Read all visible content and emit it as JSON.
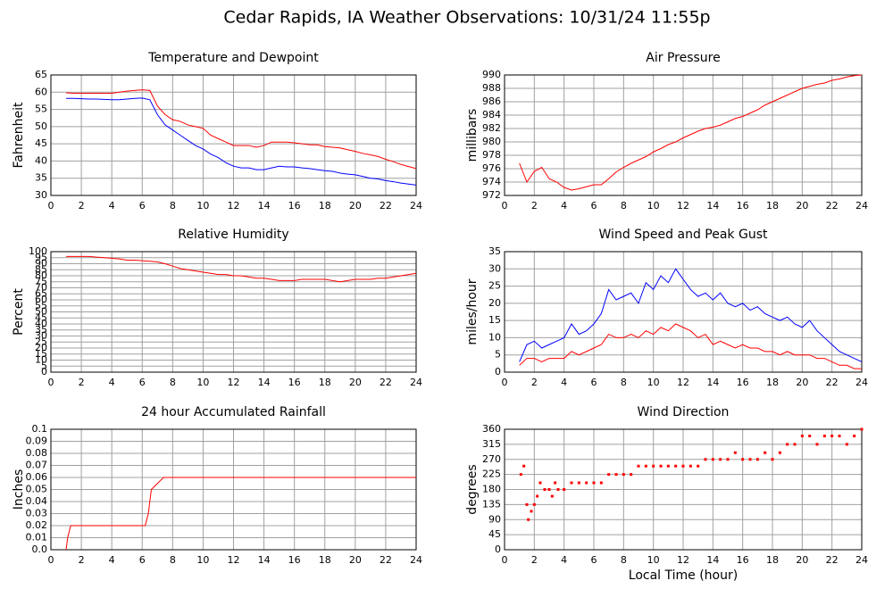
{
  "title": "Cedar Rapids, IA Weather Observations: 10/31/24 11:55p",
  "chart_data": [
    {
      "type": "line",
      "title": "Temperature and Dewpoint",
      "ylabel": "Fahrenheit",
      "x": [
        1,
        1.5,
        2,
        2.5,
        3,
        3.5,
        4,
        4.5,
        5,
        5.5,
        6,
        6.5,
        7,
        7.5,
        8,
        8.5,
        9,
        9.5,
        10,
        10.5,
        11,
        11.5,
        12,
        12.5,
        13,
        13.5,
        14,
        14.5,
        15,
        15.5,
        16,
        16.5,
        17,
        17.5,
        18,
        18.5,
        19,
        19.5,
        20,
        20.5,
        21,
        21.5,
        22,
        22.5,
        23,
        23.5,
        24
      ],
      "series": [
        {
          "name": "Temperature",
          "color": "#ff0000",
          "values": [
            59.8,
            59.7,
            59.7,
            59.7,
            59.7,
            59.7,
            59.7,
            60,
            60.3,
            60.5,
            60.7,
            60.5,
            56,
            53.5,
            52,
            51.5,
            50.5,
            50,
            49.5,
            47.5,
            46.5,
            45.5,
            44.5,
            44.5,
            44.5,
            44,
            44.5,
            45.5,
            45.5,
            45.5,
            45.3,
            45,
            44.7,
            44.7,
            44.2,
            44,
            43.8,
            43.3,
            42.8,
            42.2,
            41.8,
            41.3,
            40.5,
            39.8,
            39,
            38.4,
            37.8
          ]
        },
        {
          "name": "Dewpoint",
          "color": "#0000ff",
          "values": [
            58.2,
            58.2,
            58.1,
            58,
            58,
            57.9,
            57.8,
            57.8,
            58,
            58.2,
            58.3,
            57.8,
            53.5,
            50.5,
            49,
            47.5,
            46,
            44.5,
            43.5,
            42,
            41,
            39.5,
            38.5,
            38,
            38,
            37.5,
            37.5,
            38,
            38.5,
            38.3,
            38.3,
            38,
            37.8,
            37.5,
            37.2,
            37,
            36.5,
            36.2,
            36,
            35.5,
            35,
            34.8,
            34.3,
            34,
            33.6,
            33.3,
            33
          ]
        }
      ],
      "xlim": [
        0,
        24
      ],
      "xticks": [
        0,
        2,
        4,
        6,
        8,
        10,
        12,
        14,
        16,
        18,
        20,
        22,
        24
      ],
      "ylim": [
        30,
        65
      ],
      "yticks": [
        30,
        35,
        40,
        45,
        50,
        55,
        60,
        65
      ],
      "grid": true
    },
    {
      "type": "line",
      "title": "Air Pressure",
      "ylabel": "millibars",
      "x": [
        1,
        1.5,
        2,
        2.5,
        3,
        3.5,
        4,
        4.5,
        5,
        5.5,
        6,
        6.5,
        7,
        7.5,
        8,
        8.5,
        9,
        9.5,
        10,
        10.5,
        11,
        11.5,
        12,
        12.5,
        13,
        13.5,
        14,
        14.5,
        15,
        15.5,
        16,
        16.5,
        17,
        17.5,
        18,
        18.5,
        19,
        19.5,
        20,
        20.5,
        21,
        21.5,
        22,
        22.5,
        23,
        23.5,
        24
      ],
      "series": [
        {
          "name": "Pressure",
          "color": "#ff0000",
          "values": [
            976.8,
            974,
            975.6,
            976.2,
            974.5,
            974,
            973.2,
            972.8,
            973,
            973.3,
            973.6,
            973.6,
            974.5,
            975.5,
            976.2,
            976.8,
            977.3,
            977.8,
            978.5,
            979,
            979.6,
            980,
            980.6,
            981.1,
            981.6,
            982,
            982.2,
            982.5,
            983,
            983.5,
            983.8,
            984.3,
            984.8,
            985.5,
            986,
            986.5,
            987,
            987.5,
            988,
            988.3,
            988.6,
            988.8,
            989.2,
            989.4,
            989.7,
            989.9,
            990
          ]
        }
      ],
      "xlim": [
        0,
        24
      ],
      "xticks": [
        0,
        2,
        4,
        6,
        8,
        10,
        12,
        14,
        16,
        18,
        20,
        22,
        24
      ],
      "ylim": [
        972,
        990
      ],
      "yticks": [
        972,
        974,
        976,
        978,
        980,
        982,
        984,
        986,
        988,
        990
      ],
      "grid": true
    },
    {
      "type": "line",
      "title": "Relative Humidity",
      "ylabel": "Percent",
      "x": [
        1,
        1.5,
        2,
        2.5,
        3,
        3.5,
        4,
        4.5,
        5,
        5.5,
        6,
        6.5,
        7,
        7.5,
        8,
        8.5,
        9,
        9.5,
        10,
        10.5,
        11,
        11.5,
        12,
        12.5,
        13,
        13.5,
        14,
        14.5,
        15,
        15.5,
        16,
        16.5,
        17,
        17.5,
        18,
        18.5,
        19,
        19.5,
        20,
        20.5,
        21,
        21.5,
        22,
        22.5,
        23,
        23.5,
        24
      ],
      "series": [
        {
          "name": "Humidity",
          "color": "#ff0000",
          "values": [
            96,
            96,
            96,
            96,
            95.5,
            95,
            94.5,
            94,
            93,
            93,
            92.5,
            92,
            91.5,
            90,
            88,
            86,
            85,
            84,
            83,
            82,
            81,
            81,
            80,
            80,
            79,
            78,
            78,
            77,
            76,
            76,
            76,
            77,
            77,
            77,
            77,
            76,
            75,
            76,
            77,
            77,
            77,
            78,
            78,
            79,
            80,
            81,
            82
          ]
        }
      ],
      "xlim": [
        0,
        24
      ],
      "xticks": [
        0,
        2,
        4,
        6,
        8,
        10,
        12,
        14,
        16,
        18,
        20,
        22,
        24
      ],
      "ylim": [
        0,
        100
      ],
      "yticks": [
        0,
        5,
        10,
        15,
        20,
        25,
        30,
        35,
        40,
        45,
        50,
        55,
        60,
        65,
        70,
        75,
        80,
        85,
        90,
        95,
        100
      ],
      "grid": true
    },
    {
      "type": "line",
      "title": "Wind Speed and Peak Gust",
      "ylabel": "miles/hour",
      "x": [
        1,
        1.5,
        2,
        2.5,
        3,
        3.5,
        4,
        4.5,
        5,
        5.5,
        6,
        6.5,
        7,
        7.5,
        8,
        8.5,
        9,
        9.5,
        10,
        10.5,
        11,
        11.5,
        12,
        12.5,
        13,
        13.5,
        14,
        14.5,
        15,
        15.5,
        16,
        16.5,
        17,
        17.5,
        18,
        18.5,
        19,
        19.5,
        20,
        20.5,
        21,
        21.5,
        22,
        22.5,
        23,
        23.5,
        24
      ],
      "series": [
        {
          "name": "Peak Gust",
          "color": "#0000ff",
          "values": [
            3,
            8,
            9,
            7,
            8,
            9,
            10,
            14,
            11,
            12,
            14,
            17,
            24,
            21,
            22,
            23,
            20,
            26,
            24,
            28,
            26,
            30,
            27,
            24,
            22,
            23,
            21,
            23,
            20,
            19,
            20,
            18,
            19,
            17,
            16,
            15,
            16,
            14,
            13,
            15,
            12,
            10,
            8,
            6,
            5,
            4,
            3
          ]
        },
        {
          "name": "Wind Speed",
          "color": "#ff0000",
          "values": [
            2,
            4,
            4,
            3,
            4,
            4,
            4,
            6,
            5,
            6,
            7,
            8,
            11,
            10,
            10,
            11,
            10,
            12,
            11,
            13,
            12,
            14,
            13,
            12,
            10,
            11,
            8,
            9,
            8,
            7,
            8,
            7,
            7,
            6,
            6,
            5,
            6,
            5,
            5,
            5,
            4,
            4,
            3,
            2,
            2,
            1,
            1
          ]
        }
      ],
      "xlim": [
        0,
        24
      ],
      "xticks": [
        0,
        2,
        4,
        6,
        8,
        10,
        12,
        14,
        16,
        18,
        20,
        22,
        24
      ],
      "ylim": [
        0,
        35
      ],
      "yticks": [
        0,
        5,
        10,
        15,
        20,
        25,
        30,
        35
      ],
      "grid": true
    },
    {
      "type": "line",
      "title": "24 hour Accumulated Rainfall",
      "ylabel": "Inches",
      "x": [
        1,
        1.1,
        1.3,
        6.2,
        6.4,
        6.6,
        7.4,
        24
      ],
      "series": [
        {
          "name": "Rainfall",
          "color": "#ff0000",
          "values": [
            0,
            0.01,
            0.02,
            0.02,
            0.03,
            0.05,
            0.06,
            0.06
          ]
        }
      ],
      "xlim": [
        0,
        24
      ],
      "xticks": [
        0,
        2,
        4,
        6,
        8,
        10,
        12,
        14,
        16,
        18,
        20,
        22,
        24
      ],
      "ylim": [
        0,
        0.1
      ],
      "yticks": [
        {
          "value": 0,
          "label": "0.0"
        },
        0.01,
        0.02,
        0.03,
        0.04,
        0.05,
        0.06,
        0.07,
        0.08,
        0.09,
        0.1
      ],
      "grid": true
    },
    {
      "type": "scatter",
      "title": "Wind Direction",
      "ylabel": "degrees",
      "xlabel": "Local Time (hour)",
      "x": [
        1.1,
        1.3,
        1.5,
        1.6,
        1.8,
        2,
        2.2,
        2.4,
        2.7,
        3,
        3.2,
        3.4,
        3.6,
        4,
        4.5,
        5,
        5.5,
        6,
        6.5,
        7,
        7.5,
        8,
        8.5,
        9,
        9.5,
        10,
        10.5,
        11,
        11.5,
        12,
        12.5,
        13,
        13.5,
        14,
        14.5,
        15,
        15.5,
        16,
        16.5,
        17,
        17.5,
        18,
        18.5,
        19,
        19.5,
        20,
        20.5,
        21,
        21.5,
        22,
        22.5,
        23,
        23.5,
        24
      ],
      "series": [
        {
          "name": "Direction",
          "color": "#ff0000",
          "values": [
            225,
            250,
            135,
            90,
            115,
            135,
            160,
            200,
            180,
            180,
            160,
            200,
            180,
            180,
            200,
            200,
            200,
            200,
            200,
            225,
            225,
            225,
            225,
            250,
            250,
            250,
            250,
            250,
            250,
            250,
            250,
            250,
            270,
            270,
            270,
            270,
            290,
            270,
            270,
            270,
            290,
            270,
            290,
            315,
            315,
            340,
            340,
            315,
            340,
            340,
            340,
            315,
            340,
            360
          ]
        }
      ],
      "xlim": [
        0,
        24
      ],
      "xticks": [
        0,
        2,
        4,
        6,
        8,
        10,
        12,
        14,
        16,
        18,
        20,
        22,
        24
      ],
      "ylim": [
        0,
        360
      ],
      "yticks": [
        0,
        45,
        90,
        135,
        180,
        225,
        270,
        315,
        360
      ],
      "grid": true
    }
  ]
}
